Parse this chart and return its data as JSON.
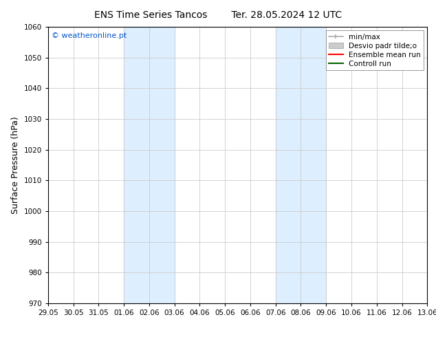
{
  "title_left": "ENS Time Series Tancos",
  "title_right": "Ter. 28.05.2024 12 UTC",
  "ylabel": "Surface Pressure (hPa)",
  "ylim": [
    970,
    1060
  ],
  "yticks": [
    970,
    980,
    990,
    1000,
    1010,
    1020,
    1030,
    1040,
    1050,
    1060
  ],
  "xtick_labels": [
    "29.05",
    "30.05",
    "31.05",
    "01.06",
    "02.06",
    "03.06",
    "04.06",
    "05.06",
    "06.06",
    "07.06",
    "08.06",
    "09.06",
    "10.06",
    "11.06",
    "12.06",
    "13.06"
  ],
  "watermark": "© weatheronline.pt",
  "watermark_color": "#0055cc",
  "bg_color": "#ffffff",
  "plot_bg_color": "#ffffff",
  "shaded_regions": [
    {
      "xstart": 3,
      "xend": 5
    },
    {
      "xstart": 9,
      "xend": 11
    }
  ],
  "shaded_color": "#ddeeff",
  "grid_color": "#cccccc",
  "tick_fontsize": 7.5,
  "label_fontsize": 9,
  "title_fontsize": 10,
  "legend_fontsize": 7.5,
  "minmax_color": "#aaaaaa",
  "desvio_color": "#cccccc",
  "ensemble_color": "#ff0000",
  "control_color": "#006600"
}
